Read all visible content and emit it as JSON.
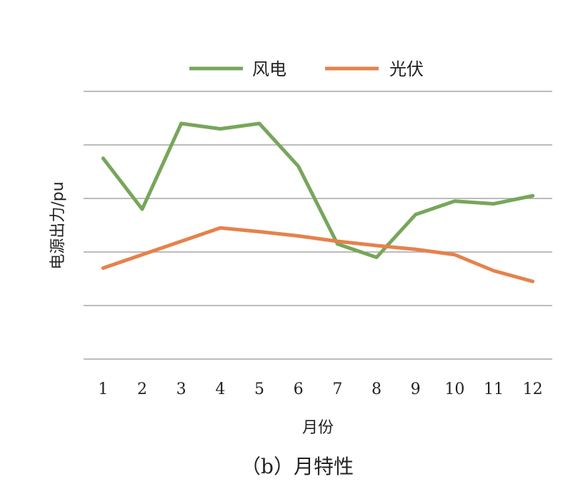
{
  "chart_data": {
    "type": "line",
    "title": "",
    "caption": "（b）月特性",
    "xlabel": "月份",
    "ylabel": "电源出力/pu",
    "categories": [
      "1",
      "2",
      "3",
      "4",
      "5",
      "6",
      "7",
      "8",
      "9",
      "10",
      "11",
      "12"
    ],
    "ylim": [
      0,
      5
    ],
    "grid": true,
    "legend_position": "top",
    "series": [
      {
        "name": "风电",
        "color": "#77a65a",
        "values": [
          3.75,
          2.8,
          4.4,
          4.3,
          4.4,
          3.6,
          2.15,
          1.9,
          2.7,
          2.95,
          2.9,
          3.05
        ]
      },
      {
        "name": "光伏",
        "color": "#e5824c",
        "values": [
          1.7,
          1.95,
          2.2,
          2.45,
          2.38,
          2.3,
          2.2,
          2.12,
          2.05,
          1.95,
          1.65,
          1.45
        ]
      }
    ]
  }
}
